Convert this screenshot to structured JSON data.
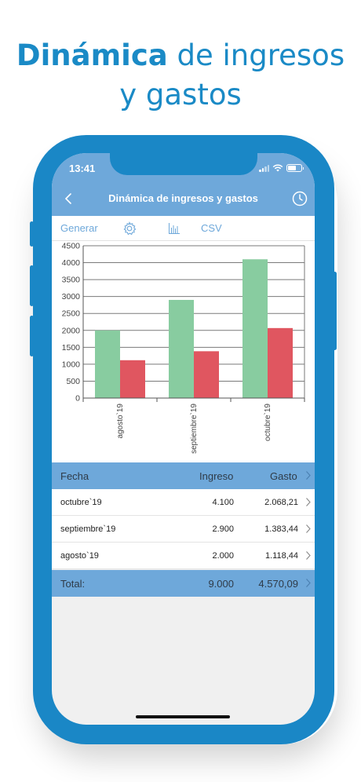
{
  "headline": {
    "bold": "Dinámica",
    "rest_line1": " de ingresos",
    "line2": "y gastos"
  },
  "status_bar": {
    "time": "13:41"
  },
  "nav": {
    "title": "Dinámica de ingresos y gastos",
    "back_icon": "chevron-left-icon",
    "history_icon": "clock-icon"
  },
  "toolbar": {
    "generate_label": "Generar",
    "settings_icon": "gear-icon",
    "chart_icon": "bar-chart-icon",
    "csv_label": "CSV"
  },
  "colors": {
    "accent": "#6ea8da",
    "frame": "#1a87c6",
    "income": "#88cca0",
    "expense": "#e05660"
  },
  "chart_data": {
    "type": "bar",
    "categories": [
      "agosto`19",
      "septiembre`19",
      "octubre`19"
    ],
    "series": [
      {
        "values": [
          2000,
          2900,
          4100
        ]
      },
      {
        "values": [
          1118.44,
          1383.44,
          2068.21
        ]
      }
    ],
    "ylim": [
      0,
      4500
    ],
    "yticks": [
      0,
      500,
      1000,
      1500,
      2000,
      2500,
      3000,
      3500,
      4000,
      4500
    ],
    "grid": true,
    "legend": "none"
  },
  "table": {
    "headers": {
      "fecha": "Fecha",
      "ingreso": "Ingreso",
      "gasto": "Gasto"
    },
    "rows": [
      {
        "fecha": "octubre`19",
        "ingreso": "4.100",
        "gasto": "2.068,21"
      },
      {
        "fecha": "septiembre`19",
        "ingreso": "2.900",
        "gasto": "1.383,44"
      },
      {
        "fecha": "agosto`19",
        "ingreso": "2.000",
        "gasto": "1.118,44"
      }
    ],
    "total": {
      "label": "Total:",
      "ingreso": "9.000",
      "gasto": "4.570,09"
    }
  }
}
